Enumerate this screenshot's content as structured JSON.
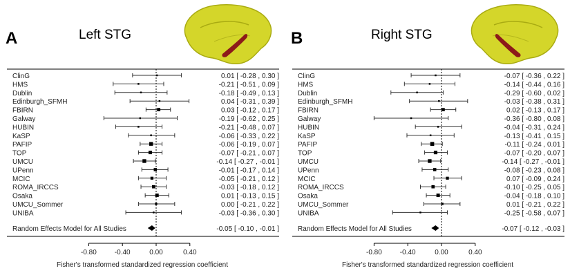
{
  "panels": [
    {
      "letter": "A",
      "title": "Left STG",
      "xlabel": "Fisher's transformed standardized regression coefficient",
      "ticks": [
        "-0.80",
        "-0.40",
        "0.00",
        "0.40"
      ],
      "tick_values": [
        -0.8,
        -0.4,
        0.0,
        0.4
      ],
      "summary_label": "Random Effects Model for All Studies",
      "summary": {
        "est": -0.05,
        "lo": -0.1,
        "hi": -0.01,
        "text": "-0.05 [ -0.10 , -0.01 ]"
      },
      "studies": [
        {
          "name": "ClinG",
          "est": 0.01,
          "lo": -0.28,
          "hi": 0.3,
          "text": "0.01 [ -0.28 , 0.30 ]"
        },
        {
          "name": "HMS",
          "est": -0.21,
          "lo": -0.51,
          "hi": 0.09,
          "text": "-0.21 [ -0.51 , 0.09 ]"
        },
        {
          "name": "Dublin",
          "est": -0.18,
          "lo": -0.49,
          "hi": 0.13,
          "text": "-0.18 [ -0.49 , 0.13 ]"
        },
        {
          "name": "Edinburgh_SFMH",
          "est": 0.04,
          "lo": -0.31,
          "hi": 0.39,
          "text": "0.04 [ -0.31 , 0.39 ]"
        },
        {
          "name": "FBIRN",
          "est": 0.03,
          "lo": -0.12,
          "hi": 0.17,
          "text": "0.03 [ -0.12 , 0.17 ]"
        },
        {
          "name": "Galway",
          "est": -0.19,
          "lo": -0.62,
          "hi": 0.25,
          "text": "-0.19 [ -0.62 , 0.25 ]"
        },
        {
          "name": "HUBIN",
          "est": -0.21,
          "lo": -0.48,
          "hi": 0.07,
          "text": "-0.21 [ -0.48 , 0.07 ]"
        },
        {
          "name": "KaSP",
          "est": -0.06,
          "lo": -0.33,
          "hi": 0.22,
          "text": "-0.06 [ -0.33 , 0.22 ]"
        },
        {
          "name": "PAFIP",
          "est": -0.06,
          "lo": -0.19,
          "hi": 0.07,
          "text": "-0.06 [ -0.19 , 0.07 ]"
        },
        {
          "name": "TOP",
          "est": -0.07,
          "lo": -0.21,
          "hi": 0.07,
          "text": "-0.07 [ -0.21 , 0.07 ]"
        },
        {
          "name": "UMCU",
          "est": -0.14,
          "lo": -0.27,
          "hi": -0.01,
          "text": "-0.14 [ -0.27 , -0.01 ]"
        },
        {
          "name": "UPenn",
          "est": -0.01,
          "lo": -0.17,
          "hi": 0.14,
          "text": "-0.01 [ -0.17 , 0.14 ]"
        },
        {
          "name": "MCIC",
          "est": -0.05,
          "lo": -0.21,
          "hi": 0.12,
          "text": "-0.05 [ -0.21 , 0.12 ]"
        },
        {
          "name": "ROMA_IRCCS",
          "est": -0.03,
          "lo": -0.18,
          "hi": 0.12,
          "text": "-0.03 [ -0.18 , 0.12 ]"
        },
        {
          "name": "Osaka",
          "est": 0.01,
          "lo": -0.13,
          "hi": 0.15,
          "text": "0.01 [ -0.13 , 0.15 ]"
        },
        {
          "name": "UMCU_Sommer",
          "est": 0.0,
          "lo": -0.21,
          "hi": 0.22,
          "text": "0.00 [ -0.21 , 0.22 ]"
        },
        {
          "name": "UNIBA",
          "est": -0.03,
          "lo": -0.36,
          "hi": 0.3,
          "text": "-0.03 [ -0.36 , 0.30 ]"
        }
      ]
    },
    {
      "letter": "B",
      "title": "Right STG",
      "xlabel": "Fisher's transformed standardized regression coefficient",
      "ticks": [
        "-0.80",
        "-0.40",
        "0.00",
        "0.40"
      ],
      "tick_values": [
        -0.8,
        -0.4,
        0.0,
        0.4
      ],
      "summary_label": "Random Effects Model for All Studies",
      "summary": {
        "est": -0.07,
        "lo": -0.12,
        "hi": -0.03,
        "text": "-0.07 [ -0.12 , -0.03 ]"
      },
      "studies": [
        {
          "name": "ClinG",
          "est": -0.07,
          "lo": -0.36,
          "hi": 0.22,
          "text": "-0.07 [ -0.36 , 0.22 ]"
        },
        {
          "name": "HMS",
          "est": -0.14,
          "lo": -0.44,
          "hi": 0.16,
          "text": "-0.14 [ -0.44 , 0.16 ]"
        },
        {
          "name": "Dublin",
          "est": -0.29,
          "lo": -0.6,
          "hi": 0.02,
          "text": "-0.29 [ -0.60 , 0.02 ]"
        },
        {
          "name": "Edinburgh_SFMH",
          "est": -0.03,
          "lo": -0.38,
          "hi": 0.31,
          "text": "-0.03 [ -0.38 , 0.31 ]"
        },
        {
          "name": "FBIRN",
          "est": 0.02,
          "lo": -0.13,
          "hi": 0.17,
          "text": "0.02 [ -0.13 , 0.17 ]"
        },
        {
          "name": "Galway",
          "est": -0.36,
          "lo": -0.8,
          "hi": 0.08,
          "text": "-0.36 [ -0.80 , 0.08 ]"
        },
        {
          "name": "HUBIN",
          "est": -0.04,
          "lo": -0.31,
          "hi": 0.24,
          "text": "-0.04 [ -0.31 , 0.24 ]"
        },
        {
          "name": "KaSP",
          "est": -0.13,
          "lo": -0.41,
          "hi": 0.15,
          "text": "-0.13 [ -0.41 , 0.15 ]"
        },
        {
          "name": "PAFIP",
          "est": -0.11,
          "lo": -0.24,
          "hi": 0.01,
          "text": "-0.11 [ -0.24 , 0.01 ]"
        },
        {
          "name": "TOP",
          "est": -0.07,
          "lo": -0.2,
          "hi": 0.07,
          "text": "-0.07 [ -0.20 , 0.07 ]"
        },
        {
          "name": "UMCU",
          "est": -0.14,
          "lo": -0.27,
          "hi": -0.01,
          "text": "-0.14 [ -0.27 , -0.01 ]"
        },
        {
          "name": "UPenn",
          "est": -0.08,
          "lo": -0.23,
          "hi": 0.08,
          "text": "-0.08 [ -0.23 , 0.08 ]"
        },
        {
          "name": "MCIC",
          "est": 0.07,
          "lo": -0.09,
          "hi": 0.24,
          "text": "0.07 [ -0.09 , 0.24 ]"
        },
        {
          "name": "ROMA_IRCCS",
          "est": -0.1,
          "lo": -0.25,
          "hi": 0.05,
          "text": "-0.10 [ -0.25 , 0.05 ]"
        },
        {
          "name": "Osaka",
          "est": -0.04,
          "lo": -0.18,
          "hi": 0.1,
          "text": "-0.04 [ -0.18 , 0.10 ]"
        },
        {
          "name": "UMCU_Sommer",
          "est": 0.01,
          "lo": -0.21,
          "hi": 0.22,
          "text": "0.01 [ -0.21 , 0.22 ]"
        },
        {
          "name": "UNIBA",
          "est": -0.25,
          "lo": -0.58,
          "hi": 0.07,
          "text": "-0.25 [ -0.58 , 0.07 ]"
        }
      ]
    }
  ],
  "colors": {
    "brain": "#d4d62a",
    "brain_shadow": "#a9ab12",
    "stg": "#8c1a1a",
    "ink": "#000000"
  },
  "chart_data": [
    {
      "type": "scatter",
      "title": "Left STG",
      "xlabel": "Fisher's transformed standardized regression coefficient",
      "xlim": [
        -0.8,
        0.4
      ],
      "categories": [
        "ClinG",
        "HMS",
        "Dublin",
        "Edinburgh_SFMH",
        "FBIRN",
        "Galway",
        "HUBIN",
        "KaSP",
        "PAFIP",
        "TOP",
        "UMCU",
        "UPenn",
        "MCIC",
        "ROMA_IRCCS",
        "Osaka",
        "UMCU_Sommer",
        "UNIBA",
        "Random Effects Model for All Studies"
      ],
      "estimate": [
        0.01,
        -0.21,
        -0.18,
        0.04,
        0.03,
        -0.19,
        -0.21,
        -0.06,
        -0.06,
        -0.07,
        -0.14,
        -0.01,
        -0.05,
        -0.03,
        0.01,
        0.0,
        -0.03,
        -0.05
      ],
      "ci_lower": [
        -0.28,
        -0.51,
        -0.49,
        -0.31,
        -0.12,
        -0.62,
        -0.48,
        -0.33,
        -0.19,
        -0.21,
        -0.27,
        -0.17,
        -0.21,
        -0.18,
        -0.13,
        -0.21,
        -0.36,
        -0.1
      ],
      "ci_upper": [
        0.3,
        0.09,
        0.13,
        0.39,
        0.17,
        0.25,
        0.07,
        0.22,
        0.07,
        0.07,
        -0.01,
        0.14,
        0.12,
        0.12,
        0.15,
        0.22,
        0.3,
        -0.01
      ]
    },
    {
      "type": "scatter",
      "title": "Right STG",
      "xlabel": "Fisher's transformed standardized regression coefficient",
      "xlim": [
        -0.8,
        0.4
      ],
      "categories": [
        "ClinG",
        "HMS",
        "Dublin",
        "Edinburgh_SFMH",
        "FBIRN",
        "Galway",
        "HUBIN",
        "KaSP",
        "PAFIP",
        "TOP",
        "UMCU",
        "UPenn",
        "MCIC",
        "ROMA_IRCCS",
        "Osaka",
        "UMCU_Sommer",
        "UNIBA",
        "Random Effects Model for All Studies"
      ],
      "estimate": [
        -0.07,
        -0.14,
        -0.29,
        -0.03,
        0.02,
        -0.36,
        -0.04,
        -0.13,
        -0.11,
        -0.07,
        -0.14,
        -0.08,
        0.07,
        -0.1,
        -0.04,
        0.01,
        -0.25,
        -0.07
      ],
      "ci_lower": [
        -0.36,
        -0.44,
        -0.6,
        -0.38,
        -0.13,
        -0.8,
        -0.31,
        -0.41,
        -0.24,
        -0.2,
        -0.27,
        -0.23,
        -0.09,
        -0.25,
        -0.18,
        -0.21,
        -0.58,
        -0.12
      ],
      "ci_upper": [
        0.22,
        0.16,
        0.02,
        0.31,
        0.17,
        0.08,
        0.24,
        0.15,
        0.01,
        0.07,
        -0.01,
        0.08,
        0.24,
        0.05,
        0.1,
        0.22,
        0.07,
        -0.03
      ]
    }
  ]
}
